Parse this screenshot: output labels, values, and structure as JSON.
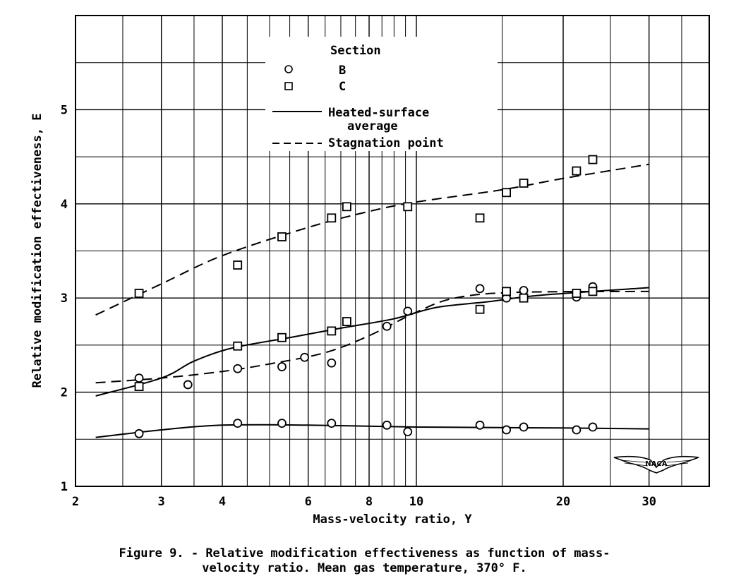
{
  "chart_data": {
    "type": "scatter",
    "xlabel": "Mass-velocity ratio, Y",
    "ylabel": "Relative modification effectiveness, E",
    "x_scale": "log",
    "xlim": [
      2,
      40
    ],
    "ylim": [
      1,
      6
    ],
    "x_ticks": [
      2,
      3,
      4,
      6,
      8,
      10,
      20,
      30
    ],
    "x_tick_labels": [
      "2",
      "3",
      "4",
      "6",
      "8",
      "10",
      "20",
      "30"
    ],
    "y_ticks": [
      1,
      2,
      3,
      4,
      5
    ],
    "y_tick_labels": [
      "1",
      "2",
      "3",
      "4",
      "5"
    ],
    "grid": true,
    "legend": {
      "title": "Section",
      "placement": "top-center",
      "entries": [
        {
          "label": "B",
          "marker": "circle"
        },
        {
          "label": "C",
          "marker": "square"
        },
        {
          "label": "Heated-surface average",
          "style": "solid"
        },
        {
          "label": "Stagnation point",
          "style": "dashed"
        }
      ]
    },
    "series": [
      {
        "name": "B",
        "marker": "circle",
        "points": [
          [
            2.7,
            1.56
          ],
          [
            4.3,
            1.67
          ],
          [
            5.3,
            1.67
          ],
          [
            6.7,
            1.67
          ],
          [
            8.7,
            1.65
          ],
          [
            9.6,
            1.58
          ],
          [
            13.5,
            1.65
          ],
          [
            15.3,
            1.6
          ],
          [
            16.6,
            1.63
          ],
          [
            21.3,
            1.6
          ],
          [
            23,
            1.63
          ],
          [
            2.7,
            2.15
          ],
          [
            3.4,
            2.08
          ],
          [
            4.3,
            2.25
          ],
          [
            5.3,
            2.27
          ],
          [
            5.9,
            2.37
          ],
          [
            6.7,
            2.31
          ],
          [
            8.7,
            2.7
          ],
          [
            9.6,
            2.86
          ],
          [
            13.5,
            3.1
          ],
          [
            15.3,
            3.0
          ],
          [
            16.6,
            3.08
          ],
          [
            21.3,
            3.01
          ],
          [
            23,
            3.12
          ]
        ]
      },
      {
        "name": "C",
        "marker": "square",
        "points": [
          [
            2.7,
            3.05
          ],
          [
            4.3,
            3.35
          ],
          [
            5.3,
            3.65
          ],
          [
            6.7,
            3.85
          ],
          [
            7.2,
            3.97
          ],
          [
            9.6,
            3.97
          ],
          [
            13.5,
            3.85
          ],
          [
            15.3,
            4.12
          ],
          [
            16.6,
            4.22
          ],
          [
            21.3,
            4.35
          ],
          [
            23,
            4.47
          ],
          [
            2.7,
            2.06
          ],
          [
            4.3,
            2.49
          ],
          [
            5.3,
            2.58
          ],
          [
            6.7,
            2.65
          ],
          [
            7.2,
            2.75
          ],
          [
            13.5,
            2.88
          ],
          [
            15.3,
            3.07
          ],
          [
            16.6,
            3.0
          ],
          [
            21.3,
            3.05
          ],
          [
            23,
            3.07
          ]
        ]
      },
      {
        "style": "solid",
        "points": [
          [
            2.2,
            1.52
          ],
          [
            3,
            1.6
          ],
          [
            4,
            1.65
          ],
          [
            6,
            1.65
          ],
          [
            10,
            1.63
          ],
          [
            20,
            1.62
          ],
          [
            30,
            1.61
          ]
        ]
      },
      {
        "style": "solid",
        "points": [
          [
            2.2,
            1.96
          ],
          [
            3,
            2.15
          ],
          [
            3.5,
            2.33
          ],
          [
            4.2,
            2.47
          ],
          [
            5.5,
            2.58
          ],
          [
            7,
            2.68
          ],
          [
            9,
            2.78
          ],
          [
            11,
            2.9
          ],
          [
            14,
            2.96
          ],
          [
            18,
            3.03
          ],
          [
            30,
            3.11
          ]
        ]
      },
      {
        "style": "dashed",
        "points": [
          [
            2.2,
            2.1
          ],
          [
            3,
            2.15
          ],
          [
            4,
            2.22
          ],
          [
            5,
            2.3
          ],
          [
            6.5,
            2.42
          ],
          [
            8,
            2.6
          ],
          [
            10,
            2.85
          ],
          [
            12,
            3.0
          ],
          [
            16,
            3.06
          ],
          [
            30,
            3.07
          ]
        ]
      },
      {
        "style": "dashed",
        "points": [
          [
            2.2,
            2.82
          ],
          [
            3,
            3.15
          ],
          [
            4,
            3.45
          ],
          [
            6,
            3.75
          ],
          [
            8,
            3.92
          ],
          [
            10,
            4.02
          ],
          [
            15,
            4.15
          ],
          [
            20,
            4.27
          ],
          [
            30,
            4.42
          ]
        ]
      }
    ]
  },
  "caption": {
    "line1": "Figure 9. - Relative modification effectiveness as function of mass-",
    "line2": "velocity ratio.  Mean gas temperature, 370° F."
  },
  "logo": {
    "text": "NACA"
  }
}
